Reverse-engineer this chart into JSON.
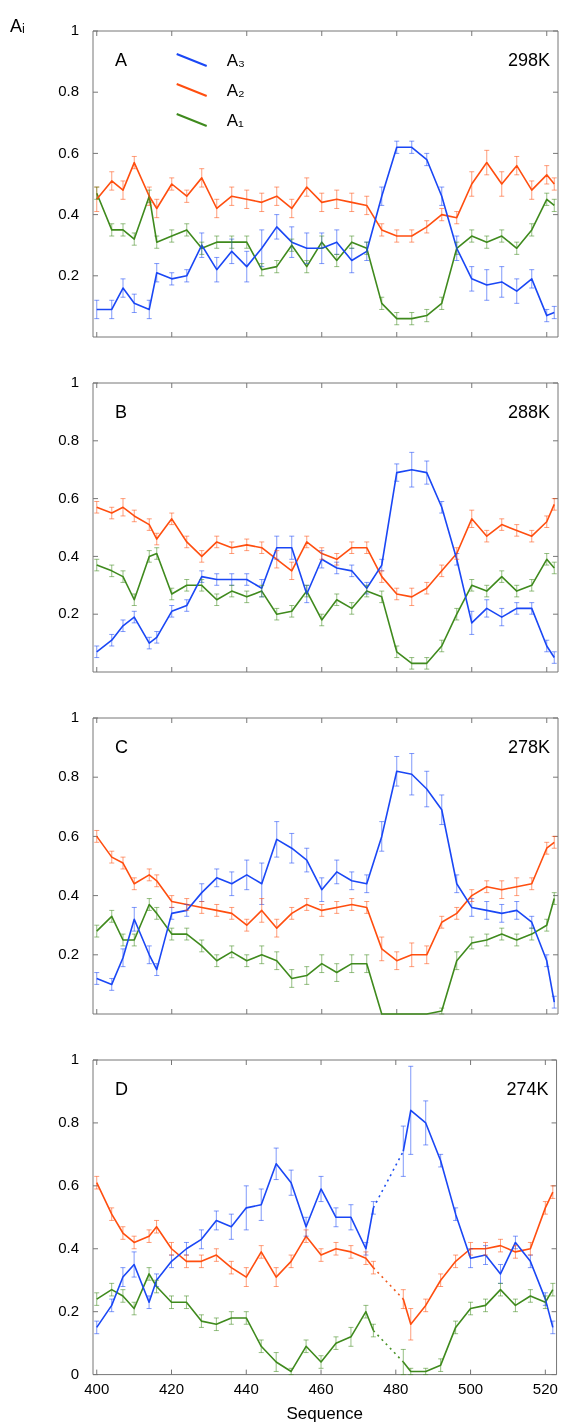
{
  "chart_data": [
    {
      "type": "line",
      "ylabel": "Aᵢ",
      "annotations": [
        "A",
        "298K"
      ],
      "legend": "top left",
      "marker": "none",
      "tick_labels": "y",
      "xlim": [
        399,
        523
      ],
      "ylim": [
        0,
        1
      ],
      "xticks": [
        400,
        420,
        440,
        460,
        480,
        500,
        520
      ],
      "yticks": [
        0.2,
        0.4,
        0.6,
        0.8,
        1
      ],
      "x": [
        400,
        404,
        407,
        410,
        414,
        416,
        420,
        424,
        428,
        432,
        436,
        440,
        444,
        448,
        452,
        456,
        460,
        464,
        468,
        472,
        476,
        480,
        484,
        488,
        492,
        496,
        500,
        504,
        508,
        512,
        516,
        520,
        522
      ],
      "series": [
        {
          "name": "A₃",
          "color": "#1a47f5",
          "values": [
            0.09,
            0.09,
            0.16,
            0.11,
            0.09,
            0.21,
            0.19,
            0.2,
            0.3,
            0.22,
            0.28,
            0.23,
            0.29,
            0.36,
            0.31,
            0.29,
            0.29,
            0.31,
            0.25,
            0.28,
            0.46,
            0.62,
            0.62,
            0.58,
            0.46,
            0.29,
            0.19,
            0.17,
            0.18,
            0.15,
            0.19,
            0.07,
            0.08
          ],
          "errors": [
            0.03,
            0.03,
            0.03,
            0.03,
            0.03,
            0.03,
            0.02,
            0.02,
            0.04,
            0.04,
            0.04,
            0.05,
            0.06,
            0.04,
            0.05,
            0.05,
            0.05,
            0.04,
            0.04,
            0.03,
            0.03,
            0.02,
            0.02,
            0.02,
            0.03,
            0.04,
            0.04,
            0.05,
            0.05,
            0.04,
            0.03,
            0.02,
            0.02
          ]
        },
        {
          "name": "A₂",
          "color": "#ff4e0f",
          "values": [
            0.45,
            0.51,
            0.48,
            0.57,
            0.46,
            0.42,
            0.5,
            0.46,
            0.52,
            0.42,
            0.46,
            0.45,
            0.44,
            0.46,
            0.42,
            0.49,
            0.44,
            0.45,
            0.44,
            0.43,
            0.35,
            0.33,
            0.33,
            0.36,
            0.4,
            0.39,
            0.5,
            0.57,
            0.5,
            0.56,
            0.48,
            0.53,
            0.5
          ],
          "errors": [
            0.04,
            0.03,
            0.03,
            0.02,
            0.03,
            0.03,
            0.02,
            0.02,
            0.03,
            0.03,
            0.03,
            0.03,
            0.03,
            0.03,
            0.03,
            0.03,
            0.03,
            0.03,
            0.03,
            0.03,
            0.02,
            0.02,
            0.02,
            0.02,
            0.02,
            0.02,
            0.04,
            0.04,
            0.04,
            0.03,
            0.03,
            0.03,
            0.02
          ]
        },
        {
          "name": "A₁",
          "color": "#3f8a1d",
          "values": [
            0.47,
            0.35,
            0.35,
            0.32,
            0.46,
            0.31,
            0.33,
            0.35,
            0.29,
            0.31,
            0.31,
            0.31,
            0.22,
            0.23,
            0.3,
            0.23,
            0.31,
            0.25,
            0.31,
            0.29,
            0.11,
            0.06,
            0.06,
            0.07,
            0.11,
            0.29,
            0.33,
            0.31,
            0.33,
            0.29,
            0.35,
            0.45,
            0.43
          ],
          "errors": [
            0.02,
            0.02,
            0.02,
            0.02,
            0.02,
            0.02,
            0.02,
            0.02,
            0.02,
            0.02,
            0.02,
            0.02,
            0.02,
            0.02,
            0.02,
            0.02,
            0.02,
            0.02,
            0.02,
            0.02,
            0.02,
            0.02,
            0.02,
            0.02,
            0.02,
            0.02,
            0.02,
            0.02,
            0.02,
            0.02,
            0.02,
            0.02,
            0.02
          ]
        }
      ]
    },
    {
      "type": "line",
      "annotations": [
        "B",
        "288K"
      ],
      "marker": "none",
      "tick_labels": "y",
      "xlim": [
        399,
        523
      ],
      "ylim": [
        0,
        1
      ],
      "xticks": [
        400,
        420,
        440,
        460,
        480,
        500,
        520
      ],
      "yticks": [
        0.2,
        0.4,
        0.6,
        0.8,
        1
      ],
      "x": [
        400,
        404,
        407,
        410,
        414,
        416,
        420,
        424,
        428,
        432,
        436,
        440,
        444,
        448,
        452,
        456,
        460,
        464,
        468,
        472,
        476,
        480,
        484,
        488,
        492,
        496,
        500,
        504,
        508,
        512,
        516,
        520,
        522
      ],
      "series": [
        {
          "color": "#1a47f5",
          "values": [
            0.07,
            0.11,
            0.16,
            0.19,
            0.1,
            0.12,
            0.21,
            0.23,
            0.33,
            0.32,
            0.32,
            0.32,
            0.29,
            0.43,
            0.43,
            0.27,
            0.39,
            0.36,
            0.35,
            0.29,
            0.37,
            0.69,
            0.7,
            0.69,
            0.57,
            0.39,
            0.17,
            0.22,
            0.19,
            0.22,
            0.22,
            0.09,
            0.05
          ],
          "errors": [
            0.02,
            0.02,
            0.02,
            0.02,
            0.02,
            0.02,
            0.02,
            0.02,
            0.02,
            0.02,
            0.02,
            0.02,
            0.03,
            0.04,
            0.04,
            0.03,
            0.03,
            0.02,
            0.02,
            0.02,
            0.02,
            0.03,
            0.06,
            0.04,
            0.02,
            0.02,
            0.04,
            0.03,
            0.03,
            0.02,
            0.02,
            0.02,
            0.02
          ]
        },
        {
          "color": "#ff4e0f",
          "values": [
            0.57,
            0.55,
            0.57,
            0.54,
            0.51,
            0.46,
            0.53,
            0.45,
            0.4,
            0.45,
            0.43,
            0.44,
            0.43,
            0.39,
            0.35,
            0.45,
            0.41,
            0.39,
            0.43,
            0.43,
            0.33,
            0.27,
            0.26,
            0.29,
            0.35,
            0.41,
            0.53,
            0.47,
            0.51,
            0.49,
            0.47,
            0.52,
            0.58
          ],
          "errors": [
            0.02,
            0.02,
            0.03,
            0.02,
            0.02,
            0.02,
            0.02,
            0.02,
            0.02,
            0.02,
            0.02,
            0.02,
            0.02,
            0.03,
            0.03,
            0.02,
            0.02,
            0.02,
            0.02,
            0.02,
            0.02,
            0.02,
            0.03,
            0.02,
            0.02,
            0.02,
            0.03,
            0.02,
            0.02,
            0.02,
            0.02,
            0.02,
            0.02
          ]
        },
        {
          "color": "#3f8a1d",
          "values": [
            0.37,
            0.35,
            0.33,
            0.25,
            0.4,
            0.41,
            0.27,
            0.3,
            0.3,
            0.25,
            0.28,
            0.26,
            0.28,
            0.2,
            0.21,
            0.28,
            0.18,
            0.25,
            0.22,
            0.28,
            0.26,
            0.07,
            0.03,
            0.03,
            0.09,
            0.2,
            0.3,
            0.28,
            0.33,
            0.28,
            0.3,
            0.39,
            0.36
          ],
          "errors": [
            0.02,
            0.02,
            0.02,
            0.02,
            0.02,
            0.02,
            0.02,
            0.02,
            0.02,
            0.02,
            0.02,
            0.02,
            0.02,
            0.02,
            0.02,
            0.02,
            0.02,
            0.02,
            0.02,
            0.02,
            0.02,
            0.02,
            0.02,
            0.02,
            0.02,
            0.02,
            0.02,
            0.02,
            0.02,
            0.02,
            0.02,
            0.02,
            0.02
          ]
        }
      ]
    },
    {
      "type": "line",
      "annotations": [
        "C",
        "278K"
      ],
      "marker": "none",
      "tick_labels": "y",
      "xlim": [
        399,
        523
      ],
      "ylim": [
        0,
        1
      ],
      "xticks": [
        400,
        420,
        440,
        460,
        480,
        500,
        520
      ],
      "yticks": [
        0.2,
        0.4,
        0.6,
        0.8,
        1
      ],
      "x": [
        400,
        404,
        407,
        410,
        414,
        416,
        420,
        424,
        428,
        432,
        436,
        440,
        444,
        448,
        452,
        456,
        460,
        464,
        468,
        472,
        476,
        480,
        484,
        488,
        492,
        496,
        500,
        504,
        508,
        512,
        516,
        520,
        522
      ],
      "series": [
        {
          "color": "#1a47f5",
          "values": [
            0.12,
            0.1,
            0.19,
            0.32,
            0.2,
            0.15,
            0.34,
            0.35,
            0.41,
            0.46,
            0.44,
            0.47,
            0.44,
            0.59,
            0.56,
            0.52,
            0.42,
            0.48,
            0.45,
            0.44,
            0.6,
            0.82,
            0.81,
            0.76,
            0.69,
            0.44,
            0.36,
            0.35,
            0.34,
            0.35,
            0.31,
            0.18,
            0.04
          ],
          "errors": [
            0.02,
            0.02,
            0.03,
            0.04,
            0.03,
            0.02,
            0.02,
            0.02,
            0.03,
            0.03,
            0.04,
            0.05,
            0.07,
            0.06,
            0.05,
            0.04,
            0.04,
            0.04,
            0.03,
            0.03,
            0.05,
            0.05,
            0.07,
            0.06,
            0.05,
            0.03,
            0.03,
            0.03,
            0.03,
            0.03,
            0.02,
            0.02,
            0.02
          ]
        },
        {
          "color": "#ff4e0f",
          "values": [
            0.6,
            0.53,
            0.51,
            0.44,
            0.47,
            0.45,
            0.38,
            0.37,
            0.36,
            0.35,
            0.34,
            0.3,
            0.35,
            0.29,
            0.34,
            0.37,
            0.35,
            0.36,
            0.37,
            0.36,
            0.22,
            0.18,
            0.2,
            0.2,
            0.31,
            0.34,
            0.4,
            0.43,
            0.42,
            0.43,
            0.44,
            0.56,
            0.58
          ],
          "errors": [
            0.02,
            0.02,
            0.02,
            0.02,
            0.02,
            0.02,
            0.02,
            0.02,
            0.02,
            0.02,
            0.02,
            0.02,
            0.04,
            0.03,
            0.02,
            0.02,
            0.02,
            0.02,
            0.02,
            0.02,
            0.04,
            0.03,
            0.04,
            0.03,
            0.02,
            0.02,
            0.02,
            0.02,
            0.03,
            0.03,
            0.02,
            0.02,
            0.02
          ]
        },
        {
          "color": "#3f8a1d",
          "values": [
            0.28,
            0.33,
            0.25,
            0.25,
            0.37,
            0.34,
            0.27,
            0.27,
            0.23,
            0.18,
            0.21,
            0.18,
            0.2,
            0.18,
            0.12,
            0.13,
            0.17,
            0.14,
            0.17,
            0.17,
            0,
            0,
            0,
            0,
            0.01,
            0.18,
            0.24,
            0.25,
            0.27,
            0.25,
            0.27,
            0.3,
            0.39
          ],
          "errors": [
            0.02,
            0.02,
            0.02,
            0.02,
            0.02,
            0.02,
            0.02,
            0.02,
            0.02,
            0.02,
            0.02,
            0.02,
            0.03,
            0.03,
            0.03,
            0.03,
            0.03,
            0.03,
            0.03,
            0.03,
            null,
            null,
            null,
            null,
            0.01,
            0.03,
            0.02,
            0.02,
            0.02,
            0.02,
            0.02,
            0.02,
            0.02
          ]
        }
      ]
    },
    {
      "type": "line",
      "annotations": [
        "D",
        "274K"
      ],
      "xlabel": "Sequence",
      "marker": "none",
      "xlim": [
        399,
        523
      ],
      "ylim": [
        0,
        1
      ],
      "xticks": [
        400,
        420,
        440,
        460,
        480,
        500,
        520
      ],
      "yticks": [
        0,
        0.2,
        0.4,
        0.6,
        0.8,
        1
      ],
      "x": [
        400,
        404,
        407,
        410,
        414,
        416,
        420,
        424,
        428,
        432,
        436,
        440,
        444,
        448,
        452,
        456,
        460,
        464,
        468,
        472,
        474,
        482,
        484,
        488,
        492,
        496,
        500,
        504,
        508,
        512,
        516,
        520,
        522
      ],
      "series": [
        {
          "color": "#1a47f5",
          "values": [
            0.15,
            0.22,
            0.31,
            0.35,
            0.23,
            0.3,
            0.36,
            0.4,
            0.43,
            0.49,
            0.47,
            0.53,
            0.54,
            0.67,
            0.61,
            0.47,
            0.59,
            0.5,
            0.5,
            0.4,
            0.53,
            null,
            null,
            null,
            null,
            null,
            null,
            null,
            null,
            null,
            null,
            null,
            null
          ],
          "errors": [
            0.02,
            0.02,
            0.03,
            0.04,
            0.02,
            0.02,
            0.02,
            0.02,
            0.03,
            0.03,
            0.04,
            0.07,
            0.05,
            0.05,
            0.04,
            0.03,
            0.04,
            0.03,
            0.04,
            0.02,
            0.02,
            null,
            null,
            null,
            null,
            null,
            null,
            null,
            null,
            null,
            null,
            null,
            null
          ]
        },
        {
          "color": "#1a47f5",
          "values": [
            null,
            null,
            null,
            null,
            null,
            null,
            null,
            null,
            null,
            null,
            null,
            null,
            null,
            null,
            null,
            null,
            null,
            null,
            null,
            null,
            null,
            0.71,
            0.84,
            0.8,
            0.68,
            0.51,
            0.37,
            0.38,
            0.32,
            0.42,
            0.36,
            0.24,
            0.15
          ],
          "errors": [
            null,
            null,
            null,
            null,
            null,
            null,
            null,
            null,
            null,
            null,
            null,
            null,
            null,
            null,
            null,
            null,
            null,
            null,
            null,
            null,
            null,
            0.08,
            0.14,
            0.07,
            0.02,
            0.02,
            0.03,
            0.03,
            0.03,
            0.02,
            0.02,
            0.02,
            0.02
          ]
        },
        {
          "color": "#ff4e0f",
          "values": [
            0.61,
            0.51,
            0.45,
            0.42,
            0.44,
            0.47,
            0.4,
            0.36,
            0.36,
            0.38,
            0.34,
            0.31,
            0.39,
            0.31,
            0.36,
            0.44,
            0.38,
            0.4,
            0.39,
            0.37,
            0.34,
            null,
            null,
            null,
            null,
            null,
            null,
            null,
            null,
            null,
            null,
            null,
            null
          ],
          "errors": [
            0.02,
            0.02,
            0.02,
            0.02,
            0.02,
            0.02,
            0.02,
            0.02,
            0.02,
            0.02,
            0.02,
            0.03,
            0.02,
            0.03,
            0.02,
            0.02,
            0.02,
            0.02,
            0.02,
            0.02,
            0.02,
            null,
            null,
            null,
            null,
            null,
            null,
            null,
            null,
            null,
            null,
            null,
            null
          ]
        },
        {
          "color": "#ff4e0f",
          "values": [
            null,
            null,
            null,
            null,
            null,
            null,
            null,
            null,
            null,
            null,
            null,
            null,
            null,
            null,
            null,
            null,
            null,
            null,
            null,
            null,
            null,
            0.24,
            0.16,
            0.22,
            0.3,
            0.36,
            0.4,
            0.4,
            0.41,
            0.39,
            0.4,
            0.53,
            0.58
          ],
          "errors": [
            null,
            null,
            null,
            null,
            null,
            null,
            null,
            null,
            null,
            null,
            null,
            null,
            null,
            null,
            null,
            null,
            null,
            null,
            null,
            null,
            null,
            0.03,
            0.05,
            0.02,
            0.02,
            0.02,
            0.02,
            0.02,
            0.02,
            0.02,
            0.02,
            0.02,
            0.02
          ]
        },
        {
          "color": "#3f8a1d",
          "values": [
            0.24,
            0.27,
            0.25,
            0.21,
            0.32,
            0.28,
            0.23,
            0.23,
            0.17,
            0.16,
            0.18,
            0.18,
            0.09,
            0.04,
            0.01,
            0.09,
            0.04,
            0.1,
            0.12,
            0.2,
            0.14,
            null,
            null,
            null,
            null,
            null,
            null,
            null,
            null,
            null,
            null,
            null,
            null
          ],
          "errors": [
            0.02,
            0.02,
            0.02,
            0.02,
            0.02,
            0.02,
            0.02,
            0.02,
            0.02,
            0.02,
            0.02,
            0.02,
            0.02,
            0.03,
            0.01,
            0.02,
            0.02,
            0.02,
            0.03,
            0.02,
            0.02,
            null,
            null,
            null,
            null,
            null,
            null,
            null,
            null,
            null,
            null,
            null,
            null
          ]
        },
        {
          "color": "#3f8a1d",
          "values": [
            null,
            null,
            null,
            null,
            null,
            null,
            null,
            null,
            null,
            null,
            null,
            null,
            null,
            null,
            null,
            null,
            null,
            null,
            null,
            null,
            null,
            0.04,
            0.01,
            0.01,
            0.03,
            0.15,
            0.21,
            0.22,
            0.27,
            0.22,
            0.25,
            0.23,
            0.27
          ],
          "errors": [
            null,
            null,
            null,
            null,
            null,
            null,
            null,
            null,
            null,
            null,
            null,
            null,
            null,
            null,
            null,
            null,
            null,
            null,
            null,
            null,
            null,
            0.04,
            0.01,
            0.01,
            0.02,
            0.02,
            0.02,
            0.02,
            0.02,
            0.02,
            0.02,
            0.02,
            0.02
          ]
        },
        {
          "color": "#2050f0",
          "line_style": "dotted",
          "values": [
            null,
            null,
            null,
            null,
            null,
            null,
            null,
            null,
            null,
            null,
            null,
            null,
            null,
            null,
            null,
            null,
            null,
            null,
            null,
            null,
            0.53,
            0.71,
            null,
            null,
            null,
            null,
            null,
            null,
            null,
            null,
            null,
            null,
            null
          ]
        },
        {
          "color": "#f05a1e",
          "line_style": "dotted",
          "values": [
            null,
            null,
            null,
            null,
            null,
            null,
            null,
            null,
            null,
            null,
            null,
            null,
            null,
            null,
            null,
            null,
            null,
            null,
            null,
            null,
            0.34,
            0.24,
            null,
            null,
            null,
            null,
            null,
            null,
            null,
            null,
            null,
            null,
            null
          ]
        },
        {
          "color": "#4a9428",
          "line_style": "dotted",
          "values": [
            null,
            null,
            null,
            null,
            null,
            null,
            null,
            null,
            null,
            null,
            null,
            null,
            null,
            null,
            null,
            null,
            null,
            null,
            null,
            null,
            0.14,
            0.04,
            null,
            null,
            null,
            null,
            null,
            null,
            null,
            null,
            null,
            null,
            null
          ]
        }
      ]
    }
  ]
}
